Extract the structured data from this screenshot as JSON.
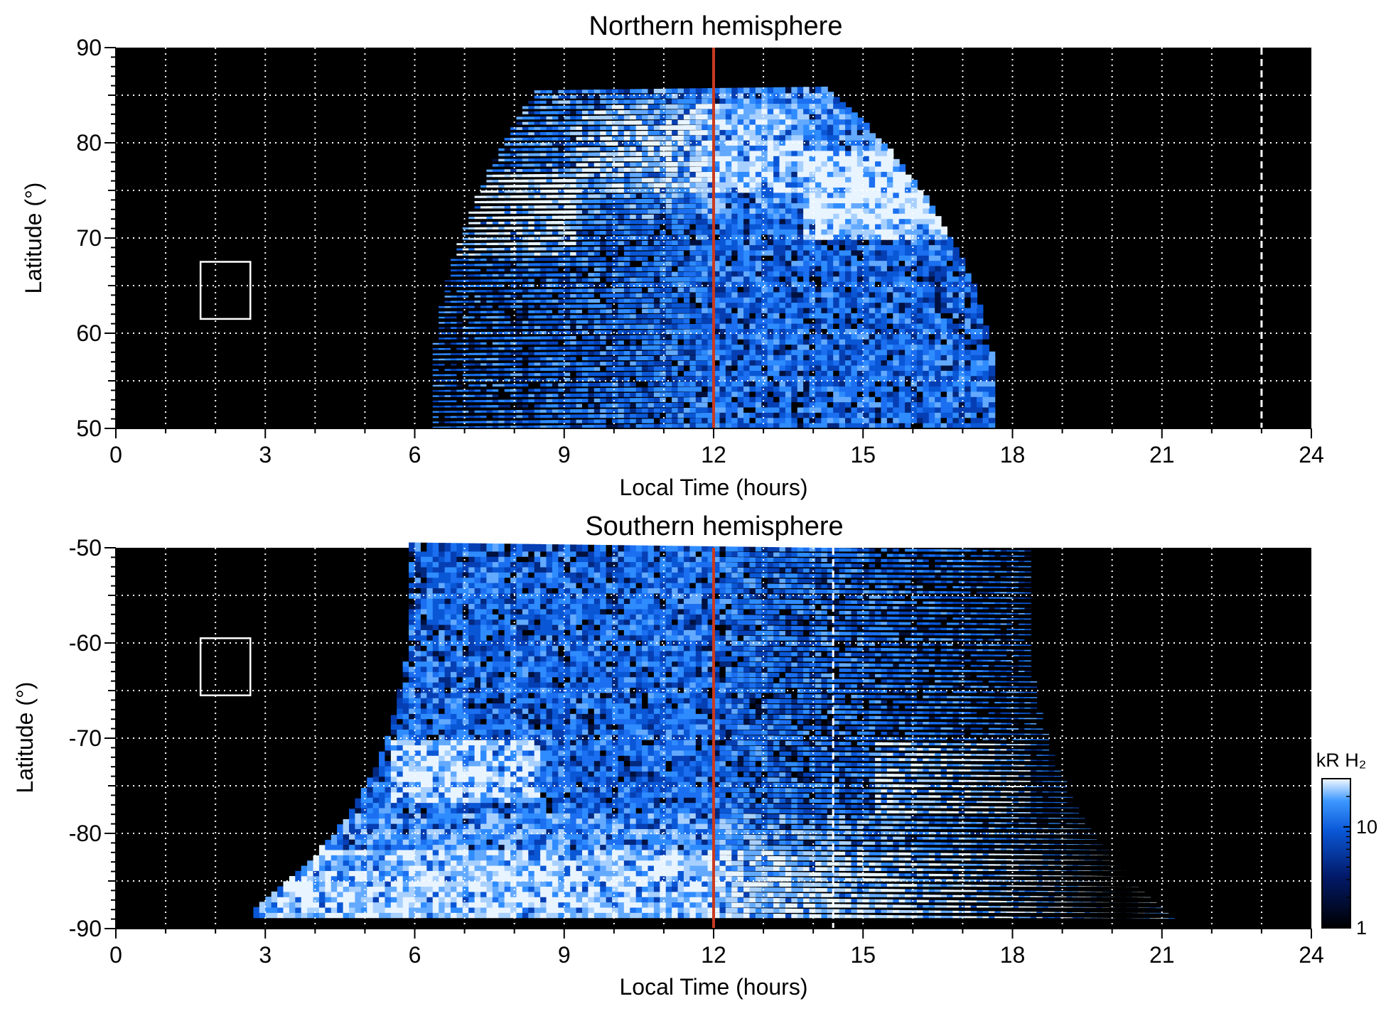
{
  "chart_data": [
    {
      "type": "heatmap",
      "title": "Northern hemisphere",
      "xlabel": "Local Time (hours)",
      "ylabel": "Latitude (°)",
      "xlim": [
        0,
        24
      ],
      "ylim": [
        50,
        90
      ],
      "xticks": [
        0,
        3,
        6,
        9,
        12,
        15,
        18,
        21,
        24
      ],
      "yticks": [
        50,
        60,
        70,
        80,
        90
      ],
      "grid": true,
      "grid_x_step": 1,
      "grid_y_step": 5,
      "noon_line_lt": 12,
      "dashed_line_lt": 23,
      "box": {
        "lt": [
          1.7,
          2.7
        ],
        "lat": [
          61.5,
          67.5
        ]
      },
      "coverage": {
        "lat_max": 86,
        "lt_start_at_lat_min": 6.3,
        "lt_end_at_lat_min": 17.7,
        "lt_start_at_lat_max": 8.5,
        "lt_end_at_lat_max": 14.2
      },
      "bright_bands": [
        {
          "lt": [
            6.8,
            9.2
          ],
          "lat": [
            68,
            77
          ],
          "level": "high"
        },
        {
          "lt": [
            13.8,
            16.8
          ],
          "lat": [
            70,
            79
          ],
          "level": "high"
        },
        {
          "lt": [
            9.2,
            13.8
          ],
          "lat": [
            75,
            84
          ],
          "level": "medium"
        }
      ]
    },
    {
      "type": "heatmap",
      "title": "Southern hemisphere",
      "xlabel": "Local Time (hours)",
      "ylabel": "Latitude (°)",
      "xlim": [
        0,
        24
      ],
      "ylim": [
        -90,
        -50
      ],
      "xticks": [
        0,
        3,
        6,
        9,
        12,
        15,
        18,
        21,
        24
      ],
      "yticks": [
        -90,
        -80,
        -70,
        -60,
        -50
      ],
      "grid": true,
      "grid_x_step": 1,
      "grid_y_step": 5,
      "noon_line_lt": 12,
      "dashed_line_lt": 14.4,
      "box": {
        "lt": [
          1.7,
          2.7
        ],
        "lat": [
          -65.5,
          -59.5
        ]
      },
      "coverage": {
        "lt_start_at_lat_top": 5.9,
        "lt_end_at_lat_top": 18.3,
        "lt_start_at_lat_bottom": 2.7,
        "lt_end_at_lat_bottom": 21.3,
        "lat_bottom": -89
      },
      "bright_bands": [
        {
          "lt": [
            5.5,
            8.5
          ],
          "lat": [
            -77,
            -70
          ],
          "level": "high"
        },
        {
          "lt": [
            15.2,
            18.4
          ],
          "lat": [
            -78,
            -70
          ],
          "level": "high"
        },
        {
          "lt": [
            3,
            21
          ],
          "lat": [
            -89,
            -82
          ],
          "level": "medium"
        }
      ]
    }
  ],
  "colorbar": {
    "title": "kR H₂",
    "scale": "log",
    "tick_labels": [
      "1",
      "10"
    ],
    "range": [
      1,
      30
    ]
  },
  "colors": {
    "background": "#000000",
    "map_dark": "#000822",
    "map_mid": "#0a57d6",
    "map_bright": "#2f8cff",
    "map_peak": "#dff0ff",
    "noon_line": "#c83a20",
    "grid": "#ffffff"
  }
}
